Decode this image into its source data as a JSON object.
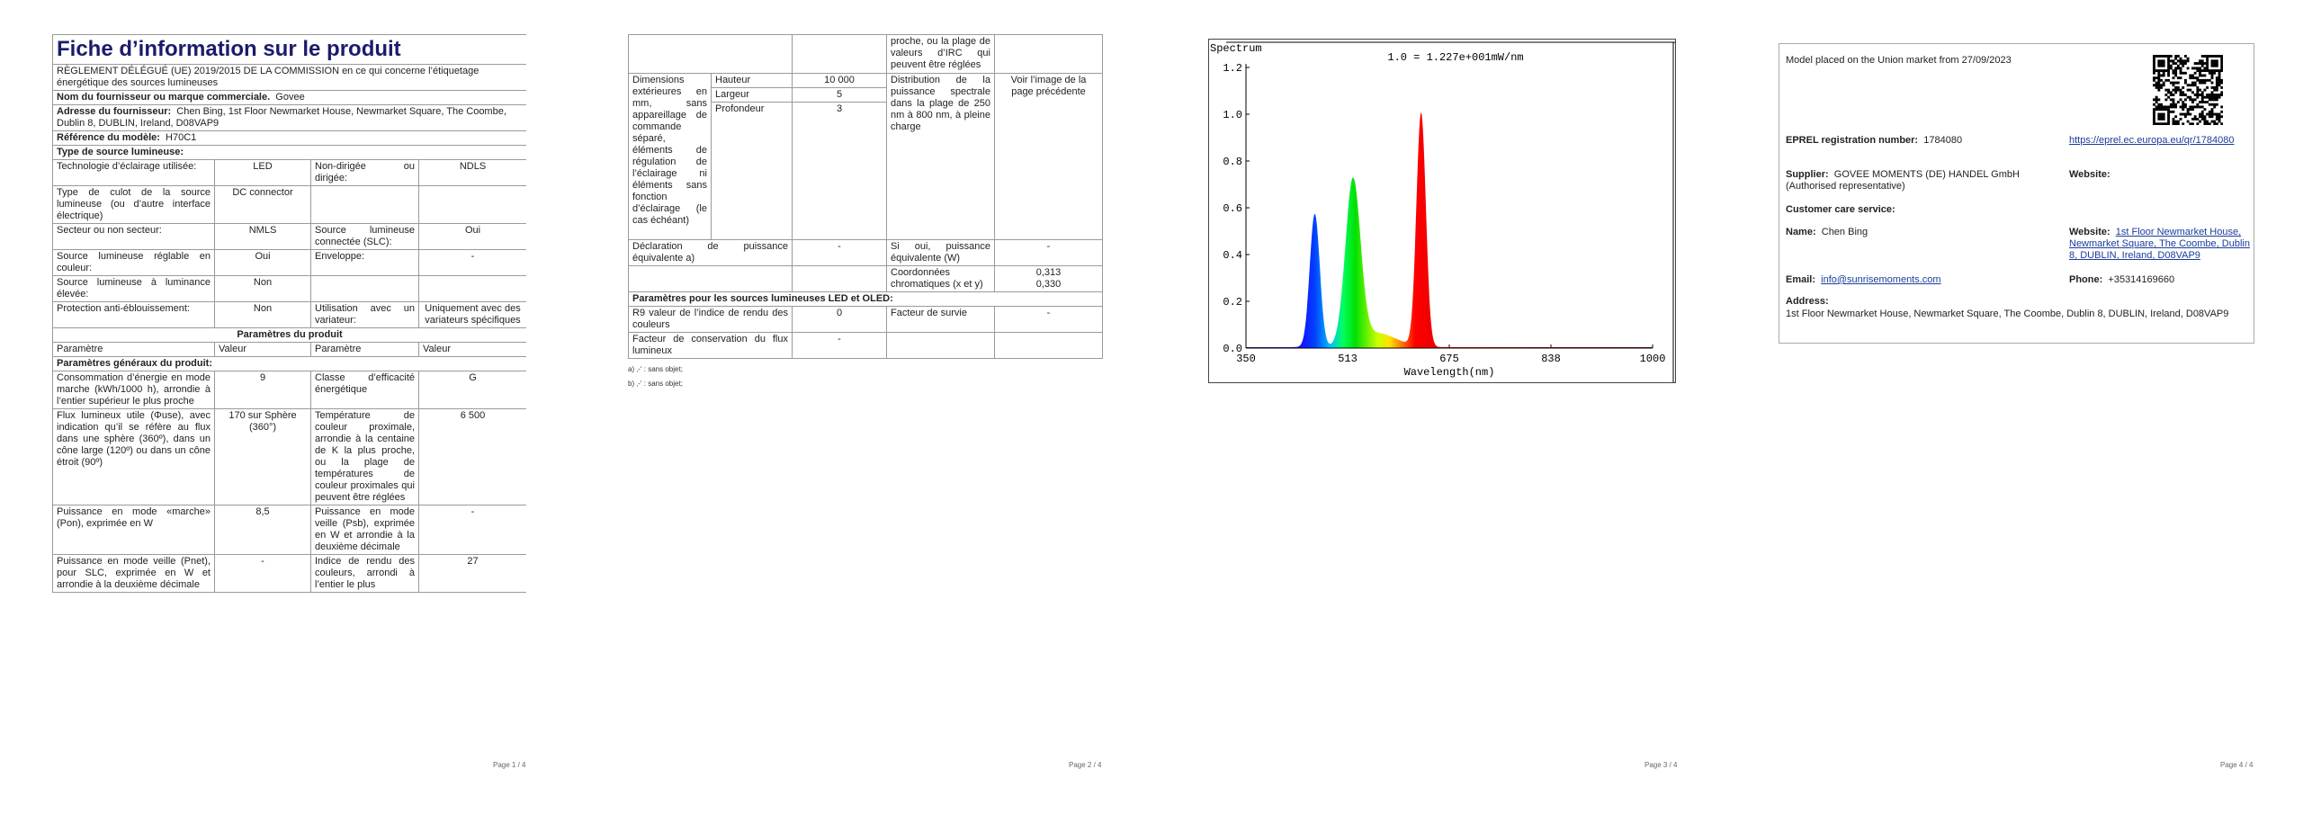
{
  "pages": [
    {
      "title": "Fiche d’information sur le produit",
      "regulation": "RÈGLEMENT DÉLÉGUÉ (UE) 2019/2015 DE LA COMMISSION en ce qui concerne l’étiquetage énergétique des sources lumineuses",
      "supplier": {
        "label": "Nom du fournisseur ou marque commerciale.",
        "value": "Govee"
      },
      "address": {
        "label": "Adresse du fournisseur:",
        "value": "Chen Bing, 1st Floor Newmarket House, Newmarket Square, The Coombe, Dublin 8, DUBLIN, Ireland, D08VAP9"
      },
      "model": {
        "label": "Référence du modèle:",
        "value": "H70C1"
      },
      "source_type": "Type de source lumineuse:",
      "spec_rows": [
        [
          "Technologie d’éclairage utilisée:",
          "LED",
          "Non-dirigée ou dirigée:",
          "NDLS"
        ],
        [
          "Type de culot de la source lumineuse (ou d’autre interface électrique)",
          "DC connector"
        ],
        [
          "Secteur ou non secteur:",
          "NMLS",
          "Source lumineuse connectée (SLC):",
          "Oui"
        ],
        [
          "Source lumineuse réglable en couleur:",
          "Oui",
          "Enveloppe:",
          "-"
        ],
        [
          "Source lumineuse à luminance élevée:",
          "Non"
        ],
        [
          "Protection anti-éblouissement:",
          "Non",
          "Utilisation avec un variateur:",
          "Uniquement avec des variateurs spécifiques"
        ]
      ],
      "params_title": "Paramètres du produit",
      "params_header": [
        "Paramètre",
        "Valeur",
        "Paramètre",
        "Valeur"
      ],
      "general_title": "Paramètres généraux du produit:",
      "param_rows": [
        [
          "Consommation d’énergie en mode marche (kWh/1000 h), arrondie à l’entier supérieur le plus proche",
          "9",
          "Classe d’efficacité énergétique",
          "G"
        ],
        [
          "Flux lumineux utile (Φuse), avec indication qu’il se réfère au flux dans une sphère (360º), dans un cône large (120º) ou dans un cône étroit (90º)",
          "170 sur Sphère (360°)",
          "Température de couleur proximale, arrondie à la centaine de K la plus proche, ou la plage de températures de couleur proximales qui peuvent être réglées",
          "6 500"
        ],
        [
          "Puissance en mode «marche» (Pon), exprimée en W",
          "8,5",
          "Puissance en mode veille (Psb), exprimée en W et arrondie à la deuxième décimale",
          "-"
        ],
        [
          "Puissance en mode veille (Pnet), pour SLC, exprimée en W et arrondie à la deuxième décimale",
          "-",
          "Indice de rendu des couleurs, arrondi à l’entier le plus",
          "27"
        ]
      ],
      "page_number": "Page 1 / 4"
    },
    {
      "cri_continued": "proche, ou la plage de valeurs d’IRC qui peuvent être réglées",
      "dimensions_label": "Dimensions extérieures en mm, sans appareillage de commande séparé, éléments de régulation de l’éclairage ni éléments sans fonction d’éclairage (le cas échéant)",
      "dimensions": [
        [
          "Hauteur",
          "10 000"
        ],
        [
          "Largeur",
          "5"
        ],
        [
          "Profondeur",
          "3"
        ]
      ],
      "spectrum_label": "Distribution de la puissance spectrale dans la plage de 250 nm à 800 nm, à pleine charge",
      "spectrum_value": "Voir l’image de la page précédente",
      "equivalent_label": "Déclaration de puissance équivalente a)",
      "equivalent_value": "-",
      "equivalent_power_label": "Si oui, puissance équivalente (W)",
      "equivalent_power_value": "-",
      "chromaticity_label": "Coordonnées chromatiques (x et y)",
      "chromaticity": [
        "0,313",
        "0,330"
      ],
      "led_title": "Paramètres pour les sources lumineuses LED et OLED:",
      "r9_label": "R9 valeur de l’indice de rendu des couleurs",
      "r9_value": "0",
      "survival_label": "Facteur de survie",
      "survival_value": "-",
      "flux_label": "Facteur de conservation du flux lumineux",
      "flux_value": "-",
      "notes": [
        "a) ‚-‘ : sans objet;",
        "b) ‚-‘ : sans objet;"
      ],
      "page_number": "Page 2 / 4"
    },
    {
      "chart_title": "Spectrum",
      "scale_note": "1.0 = 1.227e+001mW/nm",
      "y_labels": [
        "0.0",
        "0.2",
        "0.4",
        "0.6",
        "0.8",
        "1.0",
        "1.2"
      ],
      "x_labels": [
        "350",
        "513",
        "675",
        "838",
        "1000"
      ],
      "x_title": "Wavelength(nm)",
      "page_number": "Page 3 / 4"
    },
    {
      "market": "Model placed on the Union market from 27/09/2023",
      "eprel": {
        "label": "EPREL registration number:",
        "value": "1784080",
        "link": "https://eprel.ec.europa.eu/qr/1784080"
      },
      "supplier": {
        "label": "Supplier:",
        "value": "GOVEE MOMENTS (DE) HANDEL GmbH (Authorised representative)",
        "website_label": "Website:"
      },
      "care_title": "Customer care service:",
      "name": {
        "label": "Name:",
        "value": "Chen Bing"
      },
      "website": {
        "label": "Website:",
        "value": "1st Floor Newmarket House, Newmarket Square, The Coombe, Dublin 8, DUBLIN, Ireland, D08VAP9"
      },
      "email": {
        "label": "Email:",
        "value": "info@sunrisemoments.com"
      },
      "phone": {
        "label": "Phone:",
        "value": "+35314169660"
      },
      "address": {
        "label": "Address:",
        "value": "1st Floor Newmarket House, Newmarket Square, The Coombe, Dublin 8, DUBLIN, Ireland, D08VAP9"
      },
      "page_number": "Page 4 / 4"
    }
  ]
}
